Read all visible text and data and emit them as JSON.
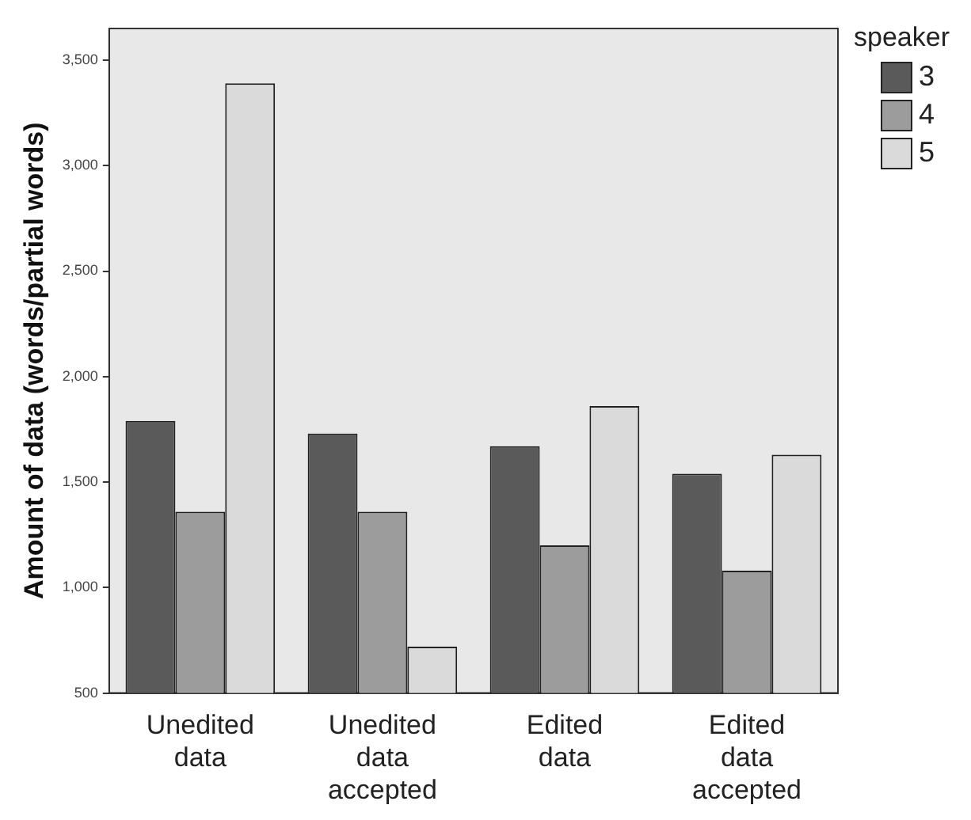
{
  "chart_data": {
    "type": "bar",
    "ylabel": "Amount of data (words/partial words)",
    "legend_title": "speaker",
    "categories": [
      "Unedited data",
      "Unedited data accepted",
      "Edited data",
      "Edited data accepted"
    ],
    "series": [
      {
        "name": "3",
        "color": "#5a5a5a",
        "values": [
          1790,
          1730,
          1670,
          1540
        ]
      },
      {
        "name": "4",
        "color": "#9c9c9c",
        "values": [
          1360,
          1360,
          1200,
          1080
        ]
      },
      {
        "name": "5",
        "color": "#dadada",
        "values": [
          3390,
          720,
          1860,
          1630
        ]
      }
    ],
    "ylim": [
      500,
      3650
    ],
    "yticks": [
      500,
      {
        "value": 1000,
        "label": "1,000"
      },
      {
        "value": 1500,
        "label": "1,500"
      },
      {
        "value": 2000,
        "label": "2,000"
      },
      {
        "value": 2500,
        "label": "2,500"
      },
      {
        "value": 3000,
        "label": "3,000"
      },
      {
        "value": 3500,
        "label": "3,500"
      }
    ],
    "grid": false,
    "legend": "top right"
  }
}
